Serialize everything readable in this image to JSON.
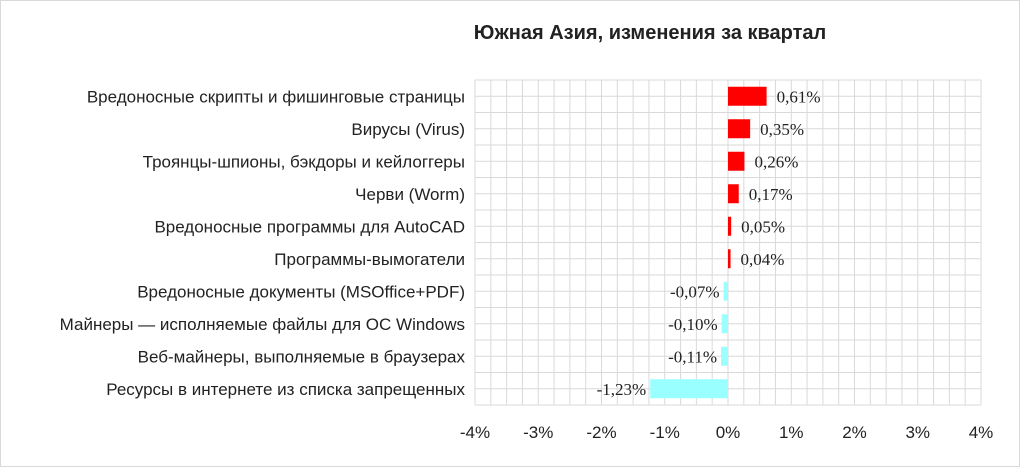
{
  "chart_data": {
    "type": "bar",
    "orientation": "horizontal",
    "title": "Южная Азия, изменения за квартал",
    "xlabel": "",
    "ylabel": "",
    "xlim": [
      -0.04,
      0.04
    ],
    "x_ticks": [
      -0.04,
      -0.03,
      -0.02,
      -0.01,
      0,
      0.01,
      0.02,
      0.03,
      0.04
    ],
    "x_tick_labels": [
      "-4%",
      "-3%",
      "-2%",
      "-1%",
      "0%",
      "1%",
      "2%",
      "3%",
      "4%"
    ],
    "grid": true,
    "legend": "none",
    "categories": [
      "Вредоносные скрипты и фишинговые страницы",
      "Вирусы (Virus)",
      "Троянцы-шпионы, бэкдоры и кейлоггеры",
      "Черви (Worm)",
      "Вредоносные программы для AutoCAD",
      "Программы-вымогатели",
      "Вредоносные документы (MSOffice+PDF)",
      "Майнеры — исполняемые файлы для ОС Windows",
      "Веб-майнеры, выполняемые в браузерах",
      "Ресурсы в интернете из списка запрещенных"
    ],
    "values": [
      0.0061,
      0.0035,
      0.0026,
      0.0017,
      0.0005,
      0.0004,
      -0.0007,
      -0.001,
      -0.0011,
      -0.0123
    ],
    "value_labels": [
      "0,61%",
      "0,35%",
      "0,26%",
      "0,17%",
      "0,05%",
      "0,04%",
      "-0,07%",
      "-0,10%",
      "-0,11%",
      "-1,23%"
    ],
    "colors": {
      "positive": "#ff0000",
      "negative": "#99ffff",
      "grid": "#d9d9d9"
    }
  }
}
